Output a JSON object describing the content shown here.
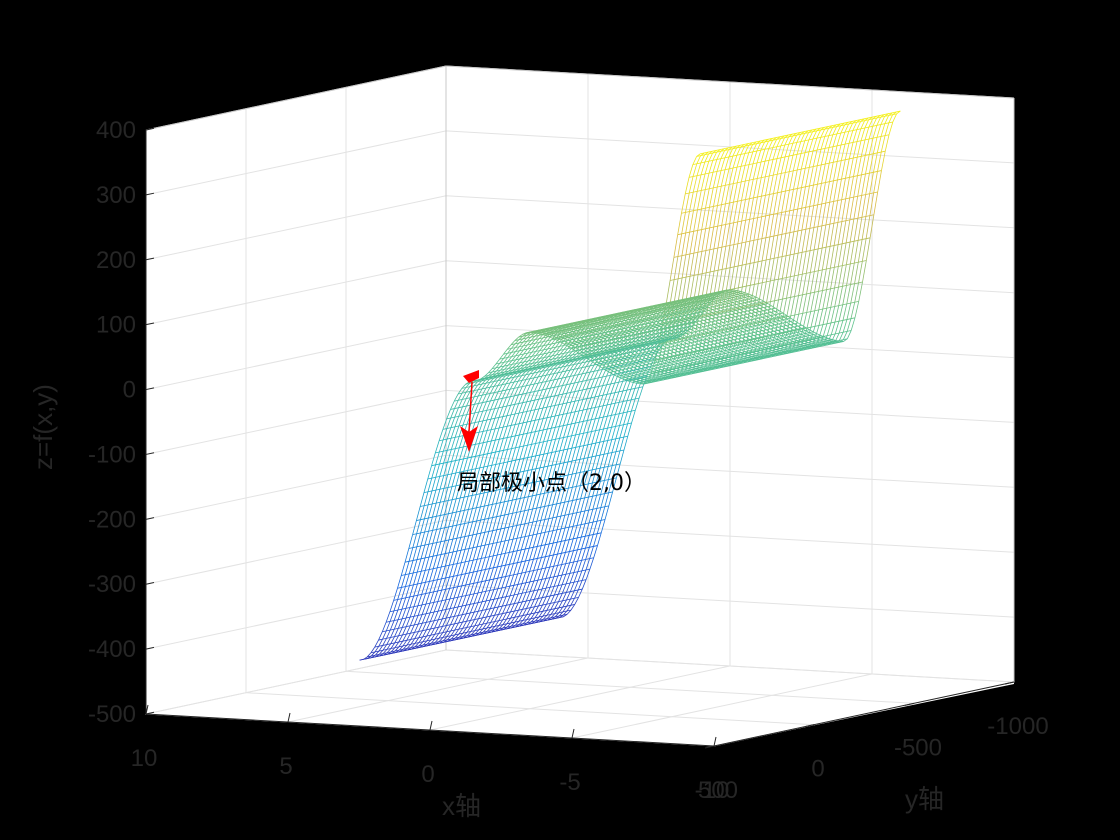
{
  "chart_data": {
    "type": "mesh-surface-3d",
    "title": "",
    "xlabel": "x轴",
    "ylabel": "y轴",
    "zlabel": "z=f(x,y)",
    "xlim": [
      -10,
      10
    ],
    "ylim": [
      -1000,
      500
    ],
    "zlim": [
      -500,
      400
    ],
    "x_ticks": [
      "10",
      "5",
      "0",
      "-5",
      "-10"
    ],
    "y_ticks": [
      "500",
      "0",
      "-500",
      "-1000"
    ],
    "z_ticks": [
      "400",
      "300",
      "200",
      "100",
      "0",
      "-100",
      "-200",
      "-300",
      "-400",
      "-500"
    ],
    "surface_samples": [
      {
        "x": -6,
        "z_approx": 370
      },
      {
        "x": -4,
        "z_approx": 10
      },
      {
        "x": 0,
        "z_approx": 80
      },
      {
        "x": 2,
        "z_approx": 0
      },
      {
        "x": 6,
        "z_approx": -440
      }
    ],
    "colormap": [
      "#3e26a8",
      "#1565e0",
      "#1cb0c8",
      "#5fc28a",
      "#d8ba49",
      "#f9fb0e"
    ],
    "marker": {
      "x": 2,
      "y": 0,
      "color": "#ff0000"
    },
    "annotation": "局部极小点（2,0）",
    "grid": true
  }
}
